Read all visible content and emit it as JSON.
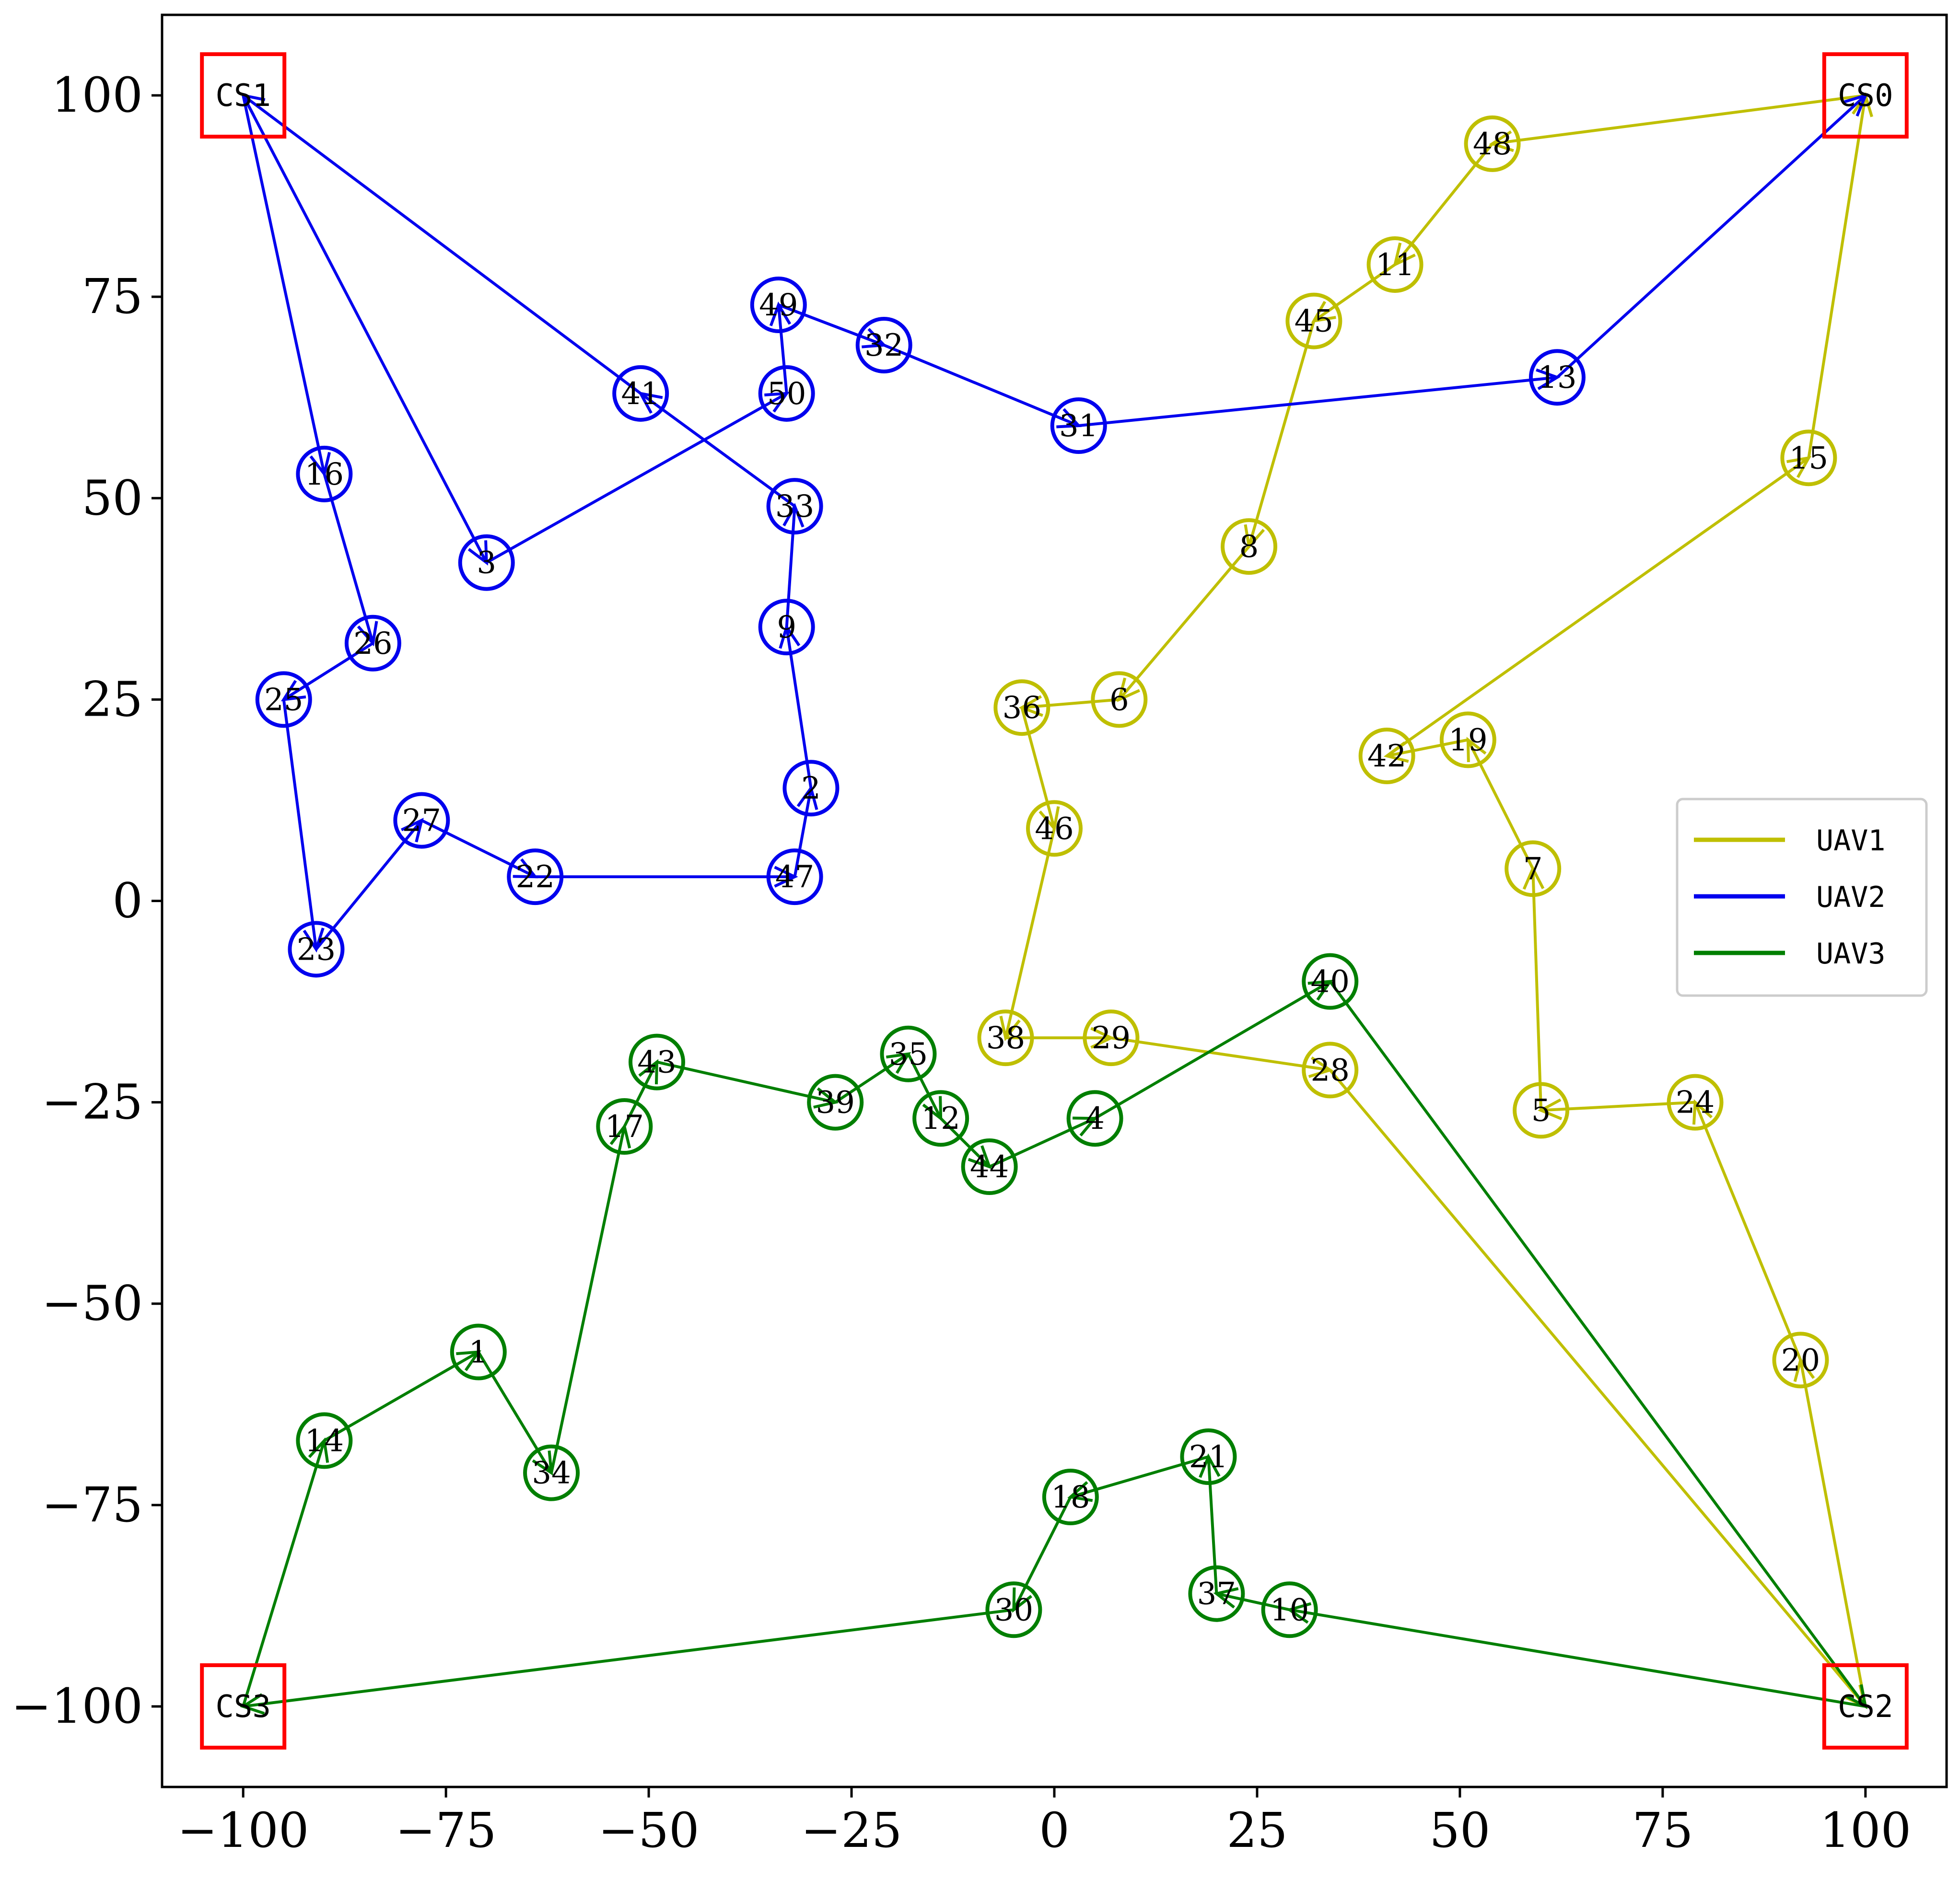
{
  "chart_data": {
    "type": "scatter",
    "title": "",
    "xlabel": "",
    "ylabel": "",
    "xlim": [
      -110,
      110
    ],
    "ylim": [
      -110,
      110
    ],
    "xticks": [
      "−100",
      "−75",
      "−50",
      "−25",
      "0",
      "25",
      "50",
      "75",
      "100"
    ],
    "xtick_values": [
      -100,
      -75,
      -50,
      -25,
      0,
      25,
      50,
      75,
      100
    ],
    "yticks": [
      "−100",
      "−75",
      "−50",
      "−25",
      "0",
      "25",
      "50",
      "75",
      "100"
    ],
    "ytick_values": [
      -100,
      -75,
      -50,
      -25,
      0,
      25,
      50,
      75,
      100
    ],
    "grid": false,
    "legend_position": "center-right",
    "stations": [
      {
        "label": "CS0",
        "x": 100,
        "y": 100
      },
      {
        "label": "CS1",
        "x": -100,
        "y": 100
      },
      {
        "label": "CS2",
        "x": 100,
        "y": -100
      },
      {
        "label": "CS3",
        "x": -100,
        "y": -100
      }
    ],
    "station_color": "#ff0000",
    "series": [
      {
        "name": "UAV1",
        "color": "#bfbf00",
        "nodes": [
          {
            "label": "48",
            "x": 54,
            "y": 94
          },
          {
            "label": "11",
            "x": 42,
            "y": 79
          },
          {
            "label": "45",
            "x": 32,
            "y": 72
          },
          {
            "label": "8",
            "x": 24,
            "y": 44
          },
          {
            "label": "6",
            "x": 8,
            "y": 25
          },
          {
            "label": "36",
            "x": -4,
            "y": 24
          },
          {
            "label": "46",
            "x": 0,
            "y": 9
          },
          {
            "label": "38",
            "x": -6,
            "y": -17
          },
          {
            "label": "29",
            "x": 7,
            "y": -17
          },
          {
            "label": "28",
            "x": 34,
            "y": -21
          },
          {
            "label": "24",
            "x": 79,
            "y": -25
          },
          {
            "label": "20",
            "x": 92,
            "y": -57
          },
          {
            "label": "5",
            "x": 60,
            "y": -26
          },
          {
            "label": "7",
            "x": 59,
            "y": 4
          },
          {
            "label": "19",
            "x": 51,
            "y": 20
          },
          {
            "label": "42",
            "x": 41,
            "y": 18
          },
          {
            "label": "15",
            "x": 93,
            "y": 55
          }
        ],
        "route": [
          "CS0",
          "48",
          "11",
          "45",
          "8",
          "6",
          "36",
          "46",
          "38",
          "29",
          "28",
          "CS2",
          "20",
          "24",
          "5",
          "7",
          "19",
          "42",
          "15",
          "CS0"
        ]
      },
      {
        "name": "UAV2",
        "color": "#0000ee",
        "nodes": [
          {
            "label": "49",
            "x": -34,
            "y": 74
          },
          {
            "label": "32",
            "x": -21,
            "y": 69
          },
          {
            "label": "41",
            "x": -51,
            "y": 63
          },
          {
            "label": "50",
            "x": -33,
            "y": 63
          },
          {
            "label": "31",
            "x": 3,
            "y": 59
          },
          {
            "label": "13",
            "x": 62,
            "y": 65
          },
          {
            "label": "16",
            "x": -90,
            "y": 53
          },
          {
            "label": "33",
            "x": -32,
            "y": 49
          },
          {
            "label": "3",
            "x": -70,
            "y": 42
          },
          {
            "label": "9",
            "x": -33,
            "y": 34
          },
          {
            "label": "26",
            "x": -84,
            "y": 32
          },
          {
            "label": "25",
            "x": -95,
            "y": 25
          },
          {
            "label": "2",
            "x": -30,
            "y": 14
          },
          {
            "label": "27",
            "x": -78,
            "y": 10
          },
          {
            "label": "22",
            "x": -64,
            "y": 3
          },
          {
            "label": "47",
            "x": -32,
            "y": 3
          },
          {
            "label": "23",
            "x": -91,
            "y": -6
          }
        ],
        "route": [
          "CS1",
          "16",
          "26",
          "25",
          "23",
          "27",
          "22",
          "47",
          "2",
          "9",
          "33",
          "41",
          "CS1",
          "3",
          "50",
          "49",
          "32",
          "31",
          "13",
          "CS0"
        ]
      },
      {
        "name": "UAV3",
        "color": "#007f00",
        "nodes": [
          {
            "label": "40",
            "x": 34,
            "y": -10
          },
          {
            "label": "43",
            "x": -49,
            "y": -20
          },
          {
            "label": "35",
            "x": -18,
            "y": -19
          },
          {
            "label": "39",
            "x": -27,
            "y": -25
          },
          {
            "label": "12",
            "x": -14,
            "y": -27
          },
          {
            "label": "4",
            "x": 5,
            "y": -27
          },
          {
            "label": "17",
            "x": -53,
            "y": -28
          },
          {
            "label": "44",
            "x": -8,
            "y": -33
          },
          {
            "label": "1",
            "x": -71,
            "y": -56
          },
          {
            "label": "14",
            "x": -90,
            "y": -67
          },
          {
            "label": "34",
            "x": -62,
            "y": -71
          },
          {
            "label": "21",
            "x": 19,
            "y": -69
          },
          {
            "label": "18",
            "x": 2,
            "y": -74
          },
          {
            "label": "30",
            "x": -5,
            "y": -88
          },
          {
            "label": "37",
            "x": 20,
            "y": -86
          },
          {
            "label": "10",
            "x": 29,
            "y": -88
          }
        ],
        "route": [
          "CS3",
          "14",
          "1",
          "34",
          "17",
          "43",
          "39",
          "35",
          "12",
          "44",
          "4",
          "40",
          "CS2",
          "10",
          "37",
          "21",
          "18",
          "30",
          "CS3"
        ]
      }
    ]
  }
}
